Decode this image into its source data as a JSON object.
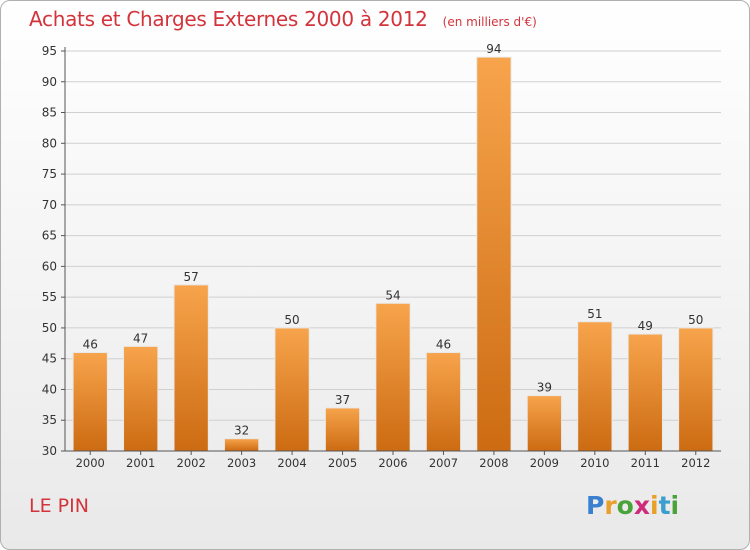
{
  "title": "Achats et Charges Externes 2000 à 2012",
  "unit": "(en milliers d'€)",
  "place": "LE PIN",
  "logo": {
    "text": "Proxiti",
    "letter_colors": [
      "#3a7fd0",
      "#e8a02a",
      "#4aa23a",
      "#d02a7a",
      "#e8a02a",
      "#3a9fd0",
      "#4aa23a"
    ]
  },
  "colors": {
    "title": "#d3343c",
    "bar_top": "#f7a44c",
    "bar_bottom": "#cc6b12",
    "grid": "#d0d0d0",
    "axis": "#555555",
    "text": "#333333"
  },
  "chart_data": {
    "type": "bar",
    "title": "Achats et Charges Externes 2000 à 2012",
    "unit": "(en milliers d'€)",
    "categories": [
      "2000",
      "2001",
      "2002",
      "2003",
      "2004",
      "2005",
      "2006",
      "2007",
      "2008",
      "2009",
      "2010",
      "2011",
      "2012"
    ],
    "values": [
      46,
      47,
      57,
      32,
      50,
      37,
      54,
      46,
      94,
      39,
      51,
      49,
      50
    ],
    "ylim": [
      30,
      95
    ],
    "yticks": [
      30,
      35,
      40,
      45,
      50,
      55,
      60,
      65,
      70,
      75,
      80,
      85,
      90,
      95
    ],
    "grid": true,
    "legend": "none"
  }
}
